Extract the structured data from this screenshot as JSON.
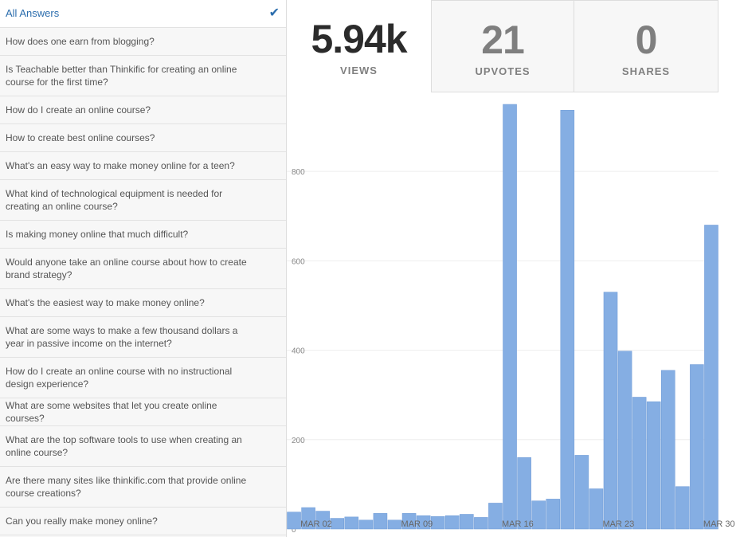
{
  "sidebar": {
    "all_answers_label": "All Answers",
    "check_icon": "check-icon",
    "items": [
      "How does one earn from blogging?",
      "Is Teachable better than Thinkific for creating an online course for the first time?",
      "How do I create an online course?",
      "How to create best online courses?",
      "What's an easy way to make money online for a teen?",
      "What kind of technological equipment is needed for creating an online course?",
      "Is making money online that much difficult?",
      "Would anyone take an online course about how to create brand strategy?",
      "What's the easiest way to make money online?",
      "What are some ways to make a few thousand dollars a year in passive income on the internet?",
      "How do I create an online course with no instructional design experience?",
      "What are some websites that let you create online courses?",
      "What are the top software tools to use when creating an online course?",
      "Are there many sites like thinkific.com that provide online course creations?",
      "Can you really make money online?"
    ]
  },
  "stats": {
    "views_value": "5.94k",
    "views_label": "VIEWS",
    "upvotes_value": "21",
    "upvotes_label": "UPVOTES",
    "shares_value": "0",
    "shares_label": "SHARES"
  },
  "colors": {
    "bar": "#85aee3",
    "bar_edge": "#6e9ad6",
    "accent": "#2b6dad"
  },
  "chart_data": {
    "type": "bar",
    "title": "",
    "xlabel": "",
    "ylabel": "",
    "ylim": [
      0,
      950
    ],
    "yticks": [
      "0",
      "200",
      "400",
      "600",
      "800"
    ],
    "ytick_values": [
      0,
      200,
      400,
      600,
      800
    ],
    "x_tick_labels": [
      "MAR 02",
      "MAR 09",
      "MAR 16",
      "MAR 23",
      "MAR 30"
    ],
    "x_tick_indices": [
      1,
      8,
      15,
      22,
      29
    ],
    "categories": [
      "Mar 01",
      "Mar 02",
      "Mar 03",
      "Mar 04",
      "Mar 05",
      "Mar 06",
      "Mar 07",
      "Mar 08",
      "Mar 09",
      "Mar 10",
      "Mar 11",
      "Mar 12",
      "Mar 13",
      "Mar 14",
      "Mar 15",
      "Mar 16",
      "Mar 17",
      "Mar 18",
      "Mar 19",
      "Mar 20",
      "Mar 21",
      "Mar 22",
      "Mar 23",
      "Mar 24",
      "Mar 25",
      "Mar 26",
      "Mar 27",
      "Mar 28",
      "Mar 29",
      "Mar 30"
    ],
    "values": [
      38,
      48,
      40,
      24,
      27,
      20,
      35,
      20,
      35,
      30,
      28,
      30,
      33,
      26,
      58,
      950,
      160,
      63,
      67,
      937,
      165,
      90,
      530,
      398,
      295,
      285,
      355,
      95,
      368,
      680
    ]
  }
}
